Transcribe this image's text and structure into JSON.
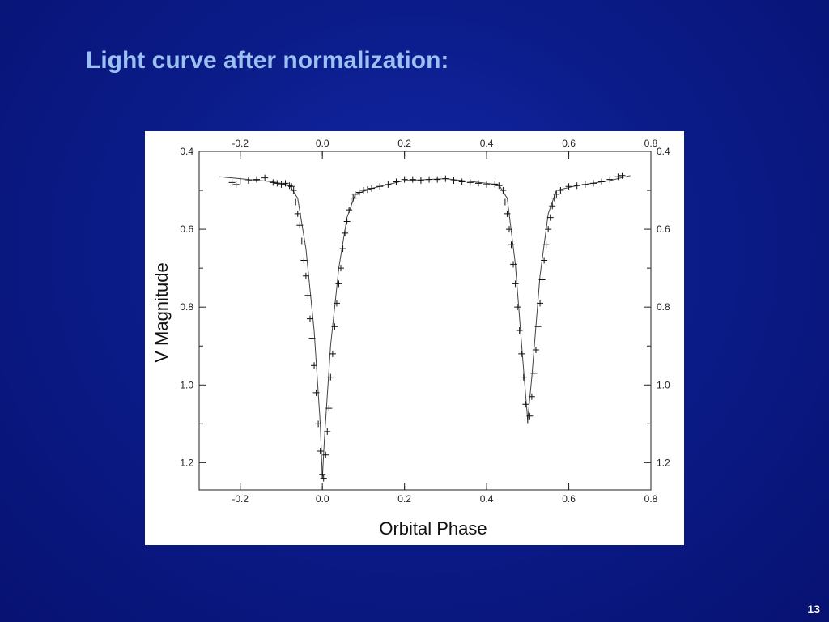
{
  "slide": {
    "title": "Light curve after normalization:",
    "page_number": "13"
  },
  "colors": {
    "background": "#0b1c8a",
    "title": "#9cc0f2",
    "chart_background": "#ffffff",
    "plot_ink": "#111111"
  },
  "chart_data": {
    "type": "scatter",
    "title": "",
    "xlabel": "Orbital Phase",
    "ylabel": "V Magnitude",
    "xlim": [
      -0.3,
      0.8
    ],
    "ylim": [
      0.4,
      1.27
    ],
    "y_inverted": false,
    "grid": false,
    "legend": "none",
    "x_ticks": [
      -0.2,
      0.0,
      0.2,
      0.4,
      0.6,
      0.8
    ],
    "x_tick_labels": [
      "-0.2",
      "0.0",
      "0.2",
      "0.4",
      "0.6",
      "0.8"
    ],
    "y_ticks": [
      0.4,
      0.6,
      0.8,
      1.0,
      1.2
    ],
    "y_tick_labels": [
      "0.4",
      "0.6",
      "0.8",
      "1.0",
      "1.2"
    ],
    "series": [
      {
        "marker": "plus",
        "points": [
          [
            -0.22,
            0.48
          ],
          [
            -0.21,
            0.485
          ],
          [
            -0.2,
            0.476
          ],
          [
            -0.18,
            0.475
          ],
          [
            -0.16,
            0.472
          ],
          [
            -0.14,
            0.468
          ],
          [
            -0.12,
            0.48
          ],
          [
            -0.11,
            0.482
          ],
          [
            -0.1,
            0.485
          ],
          [
            -0.09,
            0.482
          ],
          [
            -0.08,
            0.488
          ],
          [
            -0.075,
            0.49
          ],
          [
            -0.07,
            0.5
          ],
          [
            -0.065,
            0.53
          ],
          [
            -0.06,
            0.56
          ],
          [
            -0.055,
            0.59
          ],
          [
            -0.05,
            0.63
          ],
          [
            -0.045,
            0.68
          ],
          [
            -0.04,
            0.72
          ],
          [
            -0.035,
            0.77
          ],
          [
            -0.03,
            0.83
          ],
          [
            -0.025,
            0.88
          ],
          [
            -0.02,
            0.95
          ],
          [
            -0.015,
            1.02
          ],
          [
            -0.01,
            1.1
          ],
          [
            -0.005,
            1.17
          ],
          [
            0.0,
            1.23
          ],
          [
            0.003,
            1.24
          ],
          [
            0.008,
            1.18
          ],
          [
            0.012,
            1.12
          ],
          [
            0.016,
            1.06
          ],
          [
            0.02,
            0.98
          ],
          [
            0.025,
            0.92
          ],
          [
            0.03,
            0.85
          ],
          [
            0.035,
            0.79
          ],
          [
            0.04,
            0.74
          ],
          [
            0.045,
            0.7
          ],
          [
            0.05,
            0.65
          ],
          [
            0.055,
            0.61
          ],
          [
            0.06,
            0.58
          ],
          [
            0.065,
            0.55
          ],
          [
            0.07,
            0.53
          ],
          [
            0.075,
            0.52
          ],
          [
            0.08,
            0.51
          ],
          [
            0.09,
            0.505
          ],
          [
            0.1,
            0.5
          ],
          [
            0.11,
            0.498
          ],
          [
            0.12,
            0.495
          ],
          [
            0.14,
            0.49
          ],
          [
            0.16,
            0.485
          ],
          [
            0.18,
            0.478
          ],
          [
            0.2,
            0.472
          ],
          [
            0.22,
            0.472
          ],
          [
            0.24,
            0.475
          ],
          [
            0.26,
            0.472
          ],
          [
            0.28,
            0.472
          ],
          [
            0.3,
            0.47
          ],
          [
            0.32,
            0.475
          ],
          [
            0.34,
            0.478
          ],
          [
            0.36,
            0.48
          ],
          [
            0.38,
            0.482
          ],
          [
            0.4,
            0.485
          ],
          [
            0.42,
            0.484
          ],
          [
            0.43,
            0.488
          ],
          [
            0.44,
            0.5
          ],
          [
            0.445,
            0.53
          ],
          [
            0.45,
            0.56
          ],
          [
            0.455,
            0.6
          ],
          [
            0.46,
            0.64
          ],
          [
            0.465,
            0.69
          ],
          [
            0.47,
            0.74
          ],
          [
            0.475,
            0.8
          ],
          [
            0.48,
            0.86
          ],
          [
            0.485,
            0.92
          ],
          [
            0.49,
            0.98
          ],
          [
            0.495,
            1.05
          ],
          [
            0.5,
            1.09
          ],
          [
            0.505,
            1.08
          ],
          [
            0.51,
            1.03
          ],
          [
            0.515,
            0.97
          ],
          [
            0.52,
            0.91
          ],
          [
            0.525,
            0.85
          ],
          [
            0.53,
            0.79
          ],
          [
            0.535,
            0.73
          ],
          [
            0.54,
            0.68
          ],
          [
            0.545,
            0.64
          ],
          [
            0.55,
            0.6
          ],
          [
            0.555,
            0.57
          ],
          [
            0.56,
            0.54
          ],
          [
            0.565,
            0.52
          ],
          [
            0.57,
            0.51
          ],
          [
            0.58,
            0.5
          ],
          [
            0.6,
            0.49
          ],
          [
            0.62,
            0.488
          ],
          [
            0.64,
            0.485
          ],
          [
            0.66,
            0.482
          ],
          [
            0.68,
            0.478
          ],
          [
            0.7,
            0.472
          ],
          [
            0.72,
            0.465
          ],
          [
            0.73,
            0.462
          ]
        ]
      }
    ],
    "fit_line": [
      [
        -0.25,
        0.465
      ],
      [
        -0.12,
        0.478
      ],
      [
        -0.08,
        0.487
      ],
      [
        -0.06,
        0.52
      ],
      [
        -0.04,
        0.65
      ],
      [
        -0.02,
        0.86
      ],
      [
        -0.005,
        1.1
      ],
      [
        0.0,
        1.24
      ],
      [
        0.005,
        1.14
      ],
      [
        0.02,
        0.9
      ],
      [
        0.04,
        0.7
      ],
      [
        0.06,
        0.57
      ],
      [
        0.08,
        0.51
      ],
      [
        0.12,
        0.495
      ],
      [
        0.2,
        0.475
      ],
      [
        0.3,
        0.47
      ],
      [
        0.4,
        0.482
      ],
      [
        0.43,
        0.486
      ],
      [
        0.45,
        0.52
      ],
      [
        0.47,
        0.69
      ],
      [
        0.49,
        0.96
      ],
      [
        0.5,
        1.09
      ],
      [
        0.51,
        0.98
      ],
      [
        0.53,
        0.72
      ],
      [
        0.55,
        0.56
      ],
      [
        0.57,
        0.5
      ],
      [
        0.62,
        0.488
      ],
      [
        0.7,
        0.475
      ],
      [
        0.75,
        0.462
      ]
    ]
  }
}
